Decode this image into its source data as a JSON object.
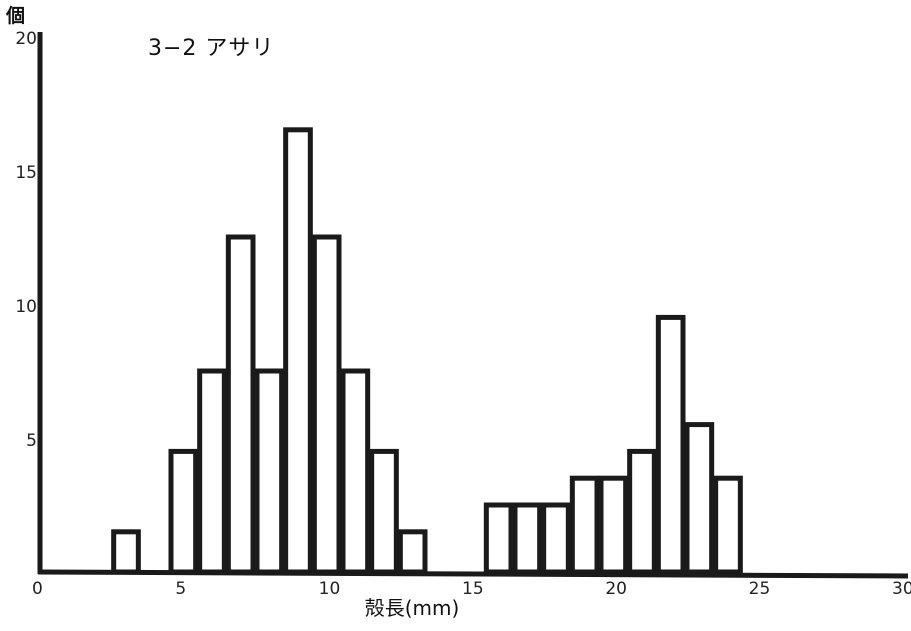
{
  "chart_data": {
    "type": "bar",
    "title": "3−2 アサリ",
    "ylabel": "個",
    "xlabel": "殻長(mm)",
    "xlim": [
      0,
      30
    ],
    "ylim": [
      0,
      20
    ],
    "x_ticks": [
      "0",
      "5",
      "10",
      "15",
      "20",
      "25",
      "30"
    ],
    "y_ticks": [
      "5",
      "10",
      "15",
      "20"
    ],
    "bar_width": 1,
    "x": [
      3,
      5,
      6,
      7,
      8,
      9,
      10,
      11,
      12,
      13,
      16,
      17,
      18,
      19,
      20,
      21,
      22,
      23,
      24
    ],
    "values": [
      1,
      4,
      7,
      12,
      7,
      16,
      12,
      7,
      4,
      1,
      2,
      2,
      2,
      3,
      3,
      4,
      9,
      5,
      3
    ],
    "grid": false,
    "legend": "none"
  },
  "colors": {
    "bar_fill": "#ffffff",
    "bar_stroke": "#1a1a1a",
    "axis": "#1a1a1a",
    "text": "#111111"
  }
}
